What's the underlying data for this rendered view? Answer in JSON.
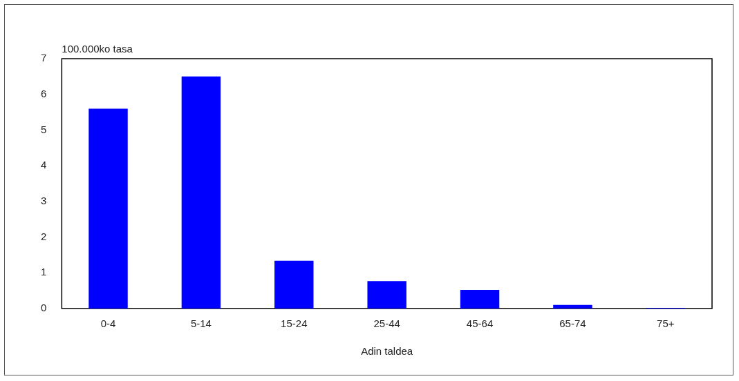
{
  "chart_data": {
    "type": "bar",
    "ylabel": "100.000ko tasa",
    "xlabel": "Adin taldea",
    "categories": [
      "0-4",
      "5-14",
      "15-24",
      "25-44",
      "45-64",
      "65-74",
      "75+"
    ],
    "values": [
      5.6,
      6.5,
      1.34,
      0.77,
      0.52,
      0.1,
      0.02
    ],
    "color": "#0000ff",
    "ylim": [
      0,
      7
    ],
    "yticks": [
      0,
      1,
      2,
      3,
      4,
      5,
      6,
      7
    ],
    "grid": false,
    "legend": false
  }
}
